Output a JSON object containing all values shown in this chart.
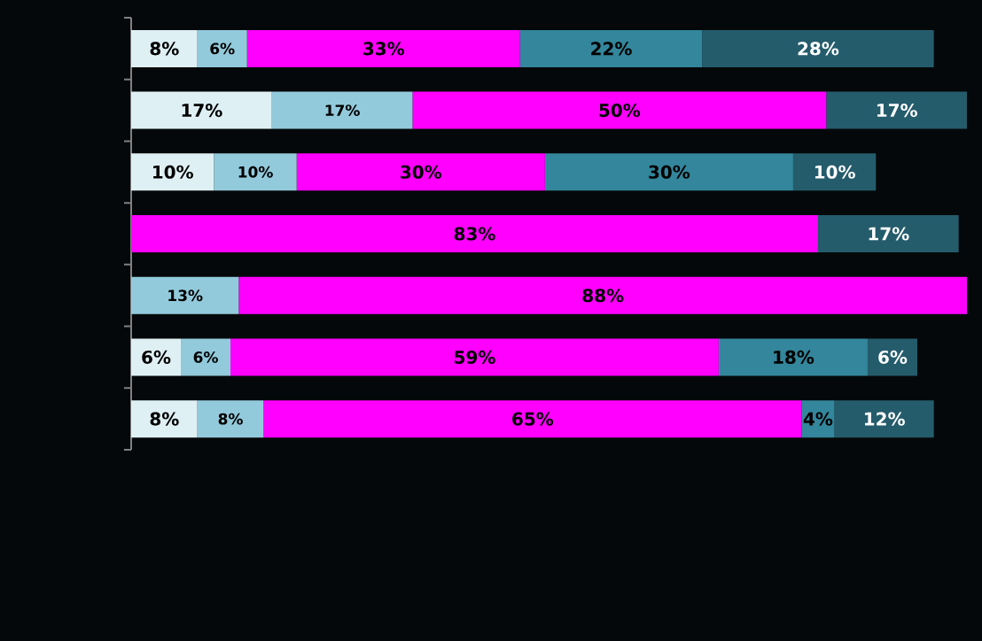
{
  "chart_data": {
    "type": "bar",
    "orientation": "horizontal",
    "stacked": true,
    "categories": [
      null,
      null,
      null,
      null,
      null,
      null,
      null
    ],
    "series": [
      {
        "color": "#dff0f5",
        "values": [
          8,
          17,
          10,
          null,
          null,
          6,
          8
        ],
        "value_labels": [
          "8%",
          "17%",
          "10%",
          null,
          null,
          "6%",
          "8%"
        ]
      },
      {
        "color": "#92cadb",
        "values": [
          6,
          17,
          10,
          null,
          13,
          6,
          8
        ],
        "value_labels": [
          "6%",
          "17%",
          "10%",
          null,
          "13%",
          "6%",
          "8%"
        ]
      },
      {
        "color": "#ff00ff",
        "values": [
          33,
          50,
          30,
          83,
          88,
          59,
          65
        ],
        "value_labels": [
          "33%",
          "50%",
          "30%",
          "83%",
          "88%",
          "59%",
          "65%"
        ]
      },
      {
        "color": "#33869b",
        "values": [
          22,
          null,
          30,
          null,
          null,
          18,
          4
        ],
        "value_labels": [
          "22%",
          null,
          "30%",
          null,
          null,
          "18%",
          "4%"
        ]
      },
      {
        "color": "#245c6c",
        "values": [
          28,
          17,
          10,
          17,
          null,
          6,
          12
        ],
        "value_labels": [
          "28%",
          "17%",
          "10%",
          "17%",
          null,
          "6%",
          "12%"
        ]
      }
    ]
  }
}
